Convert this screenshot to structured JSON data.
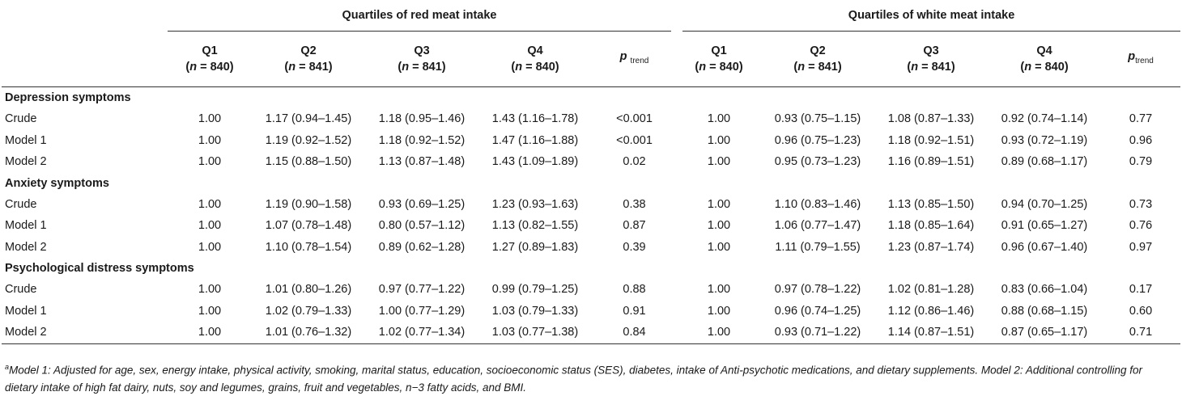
{
  "group_headers": {
    "red": "Quartiles of red meat intake",
    "white": "Quartiles of white meat intake"
  },
  "columns": {
    "red": [
      {
        "q": "Q1",
        "n": "840"
      },
      {
        "q": "Q2",
        "n": "841"
      },
      {
        "q": "Q3",
        "n": "841"
      },
      {
        "q": "Q4",
        "n": "840"
      }
    ],
    "white": [
      {
        "q": "Q1",
        "n": "840"
      },
      {
        "q": "Q2",
        "n": "841"
      },
      {
        "q": "Q3",
        "n": "841"
      },
      {
        "q": "Q4",
        "n": "840"
      }
    ],
    "n_label": "n",
    "ptrend_p": "p",
    "ptrend_sub": "trend"
  },
  "sections": [
    {
      "title": "Depression symptoms",
      "rows": [
        {
          "label": "Crude",
          "red": [
            "1.00",
            "1.17 (0.94–1.45)",
            "1.18 (0.95–1.46)",
            "1.43 (1.16–1.78)",
            "<0.001"
          ],
          "white": [
            "1.00",
            "0.93 (0.75–1.15)",
            "1.08 (0.87–1.33)",
            "0.92 (0.74–1.14)",
            "0.77"
          ]
        },
        {
          "label": "Model 1",
          "red": [
            "1.00",
            "1.19 (0.92–1.52)",
            "1.18 (0.92–1.52)",
            "1.47 (1.16–1.88)",
            "<0.001"
          ],
          "white": [
            "1.00",
            "0.96 (0.75–1.23)",
            "1.18 (0.92–1.51)",
            "0.93 (0.72–1.19)",
            "0.96"
          ]
        },
        {
          "label": "Model 2",
          "red": [
            "1.00",
            "1.15 (0.88–1.50)",
            "1.13 (0.87–1.48)",
            "1.43 (1.09–1.89)",
            "0.02"
          ],
          "white": [
            "1.00",
            "0.95 (0.73–1.23)",
            "1.16 (0.89–1.51)",
            "0.89 (0.68–1.17)",
            "0.79"
          ]
        }
      ]
    },
    {
      "title": "Anxiety symptoms",
      "rows": [
        {
          "label": "Crude",
          "red": [
            "1.00",
            "1.19 (0.90–1.58)",
            "0.93 (0.69–1.25)",
            "1.23 (0.93–1.63)",
            "0.38"
          ],
          "white": [
            "1.00",
            "1.10 (0.83–1.46)",
            "1.13 (0.85–1.50)",
            "0.94 (0.70–1.25)",
            "0.73"
          ]
        },
        {
          "label": "Model 1",
          "red": [
            "1.00",
            "1.07 (0.78–1.48)",
            "0.80 (0.57–1.12)",
            "1.13 (0.82–1.55)",
            "0.87"
          ],
          "white": [
            "1.00",
            "1.06 (0.77–1.47)",
            "1.18 (0.85–1.64)",
            "0.91 (0.65–1.27)",
            "0.76"
          ]
        },
        {
          "label": "Model 2",
          "red": [
            "1.00",
            "1.10 (0.78–1.54)",
            "0.89 (0.62–1.28)",
            "1.27 (0.89–1.83)",
            "0.39"
          ],
          "white": [
            "1.00",
            "1.11 (0.79–1.55)",
            "1.23 (0.87–1.74)",
            "0.96 (0.67–1.40)",
            "0.97"
          ]
        }
      ]
    },
    {
      "title": "Psychological distress symptoms",
      "rows": [
        {
          "label": "Crude",
          "red": [
            "1.00",
            "1.01 (0.80–1.26)",
            "0.97 (0.77–1.22)",
            "0.99 (0.79–1.25)",
            "0.88"
          ],
          "white": [
            "1.00",
            "0.97 (0.78–1.22)",
            "1.02 (0.81–1.28)",
            "0.83 (0.66–1.04)",
            "0.17"
          ]
        },
        {
          "label": "Model 1",
          "red": [
            "1.00",
            "1.02 (0.79–1.33)",
            "1.00 (0.77–1.29)",
            "1.03 (0.79–1.33)",
            "0.91"
          ],
          "white": [
            "1.00",
            "0.96 (0.74–1.25)",
            "1.12 (0.86–1.46)",
            "0.88 (0.68–1.15)",
            "0.60"
          ]
        },
        {
          "label": "Model 2",
          "red": [
            "1.00",
            "1.01 (0.76–1.32)",
            "1.02 (0.77–1.34)",
            "1.03 (0.77–1.38)",
            "0.84"
          ],
          "white": [
            "1.00",
            "0.93 (0.71–1.22)",
            "1.14 (0.87–1.51)",
            "0.87 (0.65–1.17)",
            "0.71"
          ]
        }
      ]
    }
  ],
  "footnote": {
    "marker": "a",
    "text": "Model 1: Adjusted for age, sex, energy intake, physical activity, smoking, marital status, education, socioeconomic status (SES), diabetes, intake of Anti-psychotic medications, and dietary supplements. Model 2: Additional controlling for dietary intake of high fat dairy, nuts, soy and legumes, grains, fruit and vegetables, n−3 fatty acids, and BMI."
  }
}
